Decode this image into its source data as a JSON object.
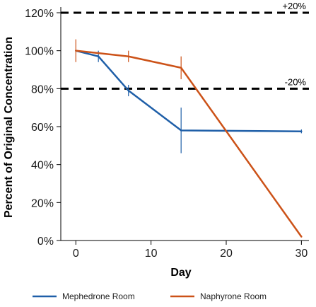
{
  "chart_data": {
    "type": "line",
    "xlabel": "Day",
    "ylabel": "Percent of Original Concentration",
    "xlim": [
      -2,
      31
    ],
    "ylim": [
      0,
      120
    ],
    "x_ticks": [
      0,
      10,
      20,
      30
    ],
    "x_tick_labels": [
      "0",
      "10",
      "20",
      "30"
    ],
    "y_ticks": [
      0,
      20,
      40,
      60,
      80,
      100,
      120
    ],
    "y_tick_labels": [
      "0%",
      "20%",
      "40%",
      "60%",
      "80%",
      "100%",
      "120%"
    ],
    "grid": false,
    "legend_position": "bottom",
    "reference_lines": [
      {
        "y": 120,
        "label": "+20%",
        "style": "dashed"
      },
      {
        "y": 80,
        "label": "-20%",
        "style": "dashed"
      }
    ],
    "series": [
      {
        "name": "Mephedrone Room",
        "color": "#1f5fa8",
        "x": [
          0,
          3,
          7,
          14,
          30
        ],
        "y": [
          100,
          97,
          79,
          58,
          57.5
        ],
        "error": [
          0,
          3,
          3,
          12,
          1
        ]
      },
      {
        "name": "Naphyrone Room",
        "color": "#cc5218",
        "x": [
          0,
          7,
          14,
          30
        ],
        "y": [
          100,
          97,
          91,
          2
        ],
        "error": [
          6,
          3,
          6,
          0
        ]
      }
    ]
  }
}
